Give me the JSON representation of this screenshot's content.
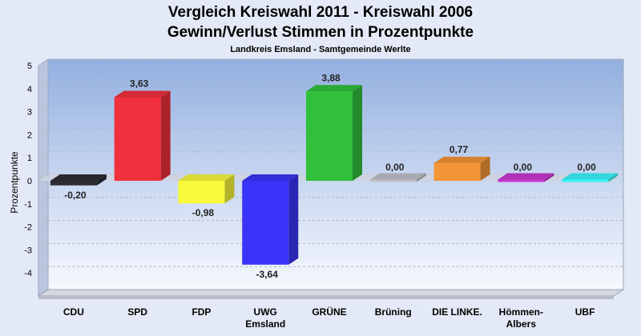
{
  "chart_data": {
    "type": "bar",
    "title_line1": "Vergleich Kreiswahl 2011 - Kreiswahl 2006",
    "title_line2": "Gewinn/Verlust Stimmen in Prozentpunkte",
    "subtitle": "Landkreis Emsland - Samtgemeinde Werlte",
    "ylabel": "Prozentpunkte",
    "xlabel": "",
    "ylim": [
      -5,
      5
    ],
    "yticks": [
      "5",
      "4",
      "3",
      "2",
      "1",
      "0",
      "-1",
      "-2",
      "-3",
      "-4"
    ],
    "ytick_values": [
      5,
      4,
      3,
      2,
      1,
      0,
      -1,
      -2,
      -3,
      -4
    ],
    "grid": "horizontal dashed",
    "categories": [
      [
        "CDU"
      ],
      [
        "SPD"
      ],
      [
        "FDP"
      ],
      [
        "UWG",
        "Emsland"
      ],
      [
        "GRÜNE"
      ],
      [
        "Brüning"
      ],
      [
        "DIE LINKE."
      ],
      [
        "Hömmen-",
        "Albers"
      ],
      [
        "UBF"
      ]
    ],
    "values": [
      -0.2,
      3.63,
      -0.98,
      -3.64,
      3.88,
      0.0,
      0.77,
      0.0,
      0.0
    ],
    "value_labels": [
      "-0,20",
      "3,63",
      "-0,98",
      "-3,64",
      "3,88",
      "0,00",
      "0,77",
      "0,00",
      "0,00"
    ],
    "colors": [
      "#2d2d33",
      "#f0303c",
      "#f8f83c",
      "#3a34f8",
      "#30c03c",
      "#c0c0c8",
      "#f49438",
      "#c838d0",
      "#38f4f8"
    ]
  }
}
